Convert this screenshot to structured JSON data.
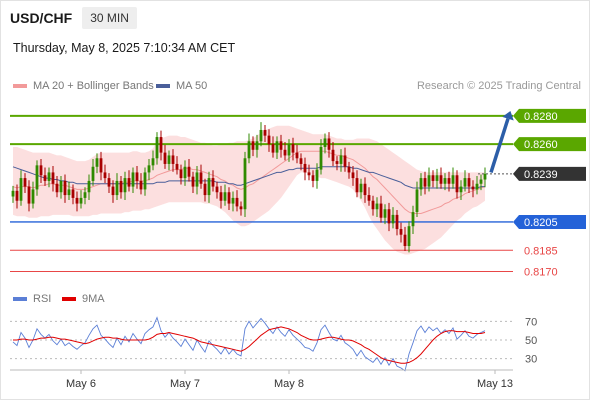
{
  "header": {
    "symbol": "USD/CHF",
    "interval": "30 MIN",
    "datetime": "Thursday, May 8, 2025 7:10:34 AM CET"
  },
  "legend": {
    "ma20": "MA 20 + Bollinger Bands",
    "ma50": "MA 50",
    "rsi": "RSI",
    "rsi_ma": "9MA",
    "credit": "Research © 2025 Trading Central"
  },
  "colors": {
    "resistance": "#5aa700",
    "support": "#2462d8",
    "target": "#e84646",
    "price_badge": "#333333",
    "bollinger_fill": "#fbd9d9",
    "ma20": "#f29a9a",
    "ma50": "#4a5f9a",
    "up_candle": "#2f8a00",
    "down_candle": "#a80000",
    "arrow": "#2c5ea8",
    "rsi": "#5b7fd6",
    "rsi_ma": "#e00000"
  },
  "chart_data": [
    {
      "type": "candlestick",
      "title": "",
      "x_labels": [
        "May 6",
        "May 7",
        "May 8",
        "May 13"
      ],
      "ylim": [
        0.8164,
        0.8294
      ],
      "levels": [
        {
          "value": 0.828,
          "label": "0.8280",
          "kind": "resistance"
        },
        {
          "value": 0.826,
          "label": "0.8260",
          "kind": "resistance"
        },
        {
          "value": 0.8239,
          "label": "0.8239",
          "kind": "last"
        },
        {
          "value": 0.8205,
          "label": "0.8205",
          "kind": "support"
        },
        {
          "value": 0.8185,
          "label": "0.8185",
          "kind": "target"
        },
        {
          "value": 0.817,
          "label": "0.8170",
          "kind": "target"
        }
      ],
      "close": [
        0.8227,
        0.822,
        0.8236,
        0.823,
        0.8218,
        0.8228,
        0.8245,
        0.8238,
        0.8234,
        0.824,
        0.8232,
        0.8226,
        0.8234,
        0.8224,
        0.8228,
        0.8222,
        0.8218,
        0.8222,
        0.8226,
        0.8234,
        0.8244,
        0.825,
        0.824,
        0.8236,
        0.823,
        0.8224,
        0.8234,
        0.8226,
        0.8236,
        0.823,
        0.824,
        0.8234,
        0.8228,
        0.824,
        0.8245,
        0.825,
        0.8265,
        0.8254,
        0.8246,
        0.8252,
        0.8246,
        0.8242,
        0.8236,
        0.8244,
        0.8237,
        0.823,
        0.824,
        0.8232,
        0.8224,
        0.8236,
        0.823,
        0.8226,
        0.822,
        0.8226,
        0.8218,
        0.8222,
        0.8216,
        0.8214,
        0.825,
        0.8262,
        0.8256,
        0.8262,
        0.827,
        0.8266,
        0.826,
        0.8254,
        0.8262,
        0.8256,
        0.8252,
        0.826,
        0.8254,
        0.825,
        0.8246,
        0.824,
        0.8238,
        0.8234,
        0.8242,
        0.8258,
        0.8264,
        0.8256,
        0.8248,
        0.8246,
        0.8252,
        0.8244,
        0.824,
        0.8236,
        0.8226,
        0.8232,
        0.8224,
        0.822,
        0.8214,
        0.8218,
        0.8208,
        0.8214,
        0.8204,
        0.821,
        0.82,
        0.8196,
        0.8188,
        0.8202,
        0.8212,
        0.8228,
        0.8236,
        0.823,
        0.8238,
        0.8234,
        0.8238,
        0.8232,
        0.8236,
        0.8232,
        0.8238,
        0.8226,
        0.823,
        0.8236,
        0.823,
        0.8228,
        0.8232,
        0.8235,
        0.8239
      ],
      "x_label_positions": [
        12,
        38,
        64,
        104
      ],
      "series": [
        {
          "name": "MA 20 + Bollinger Bands",
          "kind": "ma",
          "values": [
            0.823,
            0.8229,
            0.823,
            0.823,
            0.823,
            0.8229,
            0.823,
            0.8231,
            0.8231,
            0.8232,
            0.8232,
            0.8231,
            0.8231,
            0.8231,
            0.823,
            0.8229,
            0.8228,
            0.8228,
            0.8228,
            0.8229,
            0.823,
            0.8231,
            0.8232,
            0.8232,
            0.8232,
            0.8232,
            0.8232,
            0.8232,
            0.8233,
            0.8233,
            0.8234,
            0.8234,
            0.8234,
            0.8234,
            0.8235,
            0.8236,
            0.8238,
            0.8239,
            0.824,
            0.8241,
            0.8242,
            0.8242,
            0.8242,
            0.8243,
            0.8243,
            0.8242,
            0.8242,
            0.8241,
            0.824,
            0.8239,
            0.8238,
            0.8237,
            0.8235,
            0.8234,
            0.8232,
            0.8231,
            0.8229,
            0.8228,
            0.8229,
            0.8231,
            0.8232,
            0.8234,
            0.8236,
            0.8238,
            0.824,
            0.8242,
            0.8244,
            0.8246,
            0.8248,
            0.825,
            0.8252,
            0.8254,
            0.8255,
            0.8255,
            0.8255,
            0.8255,
            0.8255,
            0.8255,
            0.8255,
            0.8254,
            0.8253,
            0.8252,
            0.8252,
            0.8251,
            0.825,
            0.8249,
            0.8247,
            0.8245,
            0.8243,
            0.824,
            0.8237,
            0.8235,
            0.8232,
            0.8229,
            0.8226,
            0.8223,
            0.822,
            0.8217,
            0.8214,
            0.8212,
            0.8211,
            0.8211,
            0.8211,
            0.8212,
            0.8213,
            0.8214,
            0.8215,
            0.8216,
            0.8218,
            0.8219,
            0.8221,
            0.8222,
            0.8223,
            0.8225,
            0.8226,
            0.8227,
            0.8228,
            0.8229,
            0.823
          ]
        },
        {
          "name": "MA 50",
          "kind": "ma",
          "values": [
            0.8244,
            0.8243,
            0.8242,
            0.8241,
            0.824,
            0.8239,
            0.8238,
            0.8237,
            0.8236,
            0.8236,
            0.8235,
            0.8235,
            0.8234,
            0.8234,
            0.8233,
            0.8233,
            0.8232,
            0.8232,
            0.8232,
            0.8232,
            0.8232,
            0.8232,
            0.8232,
            0.8232,
            0.8232,
            0.8232,
            0.8232,
            0.8232,
            0.8232,
            0.8232,
            0.8232,
            0.8232,
            0.8232,
            0.8232,
            0.8232,
            0.8232,
            0.8233,
            0.8233,
            0.8233,
            0.8234,
            0.8234,
            0.8234,
            0.8234,
            0.8234,
            0.8234,
            0.8234,
            0.8234,
            0.8234,
            0.8234,
            0.8234,
            0.8234,
            0.8233,
            0.8233,
            0.8233,
            0.8232,
            0.8232,
            0.8231,
            0.8231,
            0.8232,
            0.8233,
            0.8234,
            0.8235,
            0.8236,
            0.8237,
            0.8238,
            0.8239,
            0.824,
            0.824,
            0.8241,
            0.8242,
            0.8242,
            0.8243,
            0.8243,
            0.8243,
            0.8243,
            0.8243,
            0.8243,
            0.8244,
            0.8244,
            0.8244,
            0.8244,
            0.8244,
            0.8244,
            0.8244,
            0.8244,
            0.8243,
            0.8243,
            0.8242,
            0.8241,
            0.824,
            0.824,
            0.8239,
            0.8238,
            0.8237,
            0.8236,
            0.8235,
            0.8234,
            0.8233,
            0.8231,
            0.823,
            0.8229,
            0.8229,
            0.8229,
            0.8229,
            0.8229,
            0.8229,
            0.8229,
            0.8229,
            0.8229,
            0.8229,
            0.8229,
            0.8229,
            0.8229,
            0.8229,
            0.8229,
            0.8229,
            0.8229,
            0.823,
            0.823
          ]
        },
        {
          "name": "Bollinger upper",
          "kind": "band_upper",
          "values": [
            0.8258,
            0.8258,
            0.8257,
            0.8256,
            0.8255,
            0.8254,
            0.8254,
            0.8254,
            0.8254,
            0.8254,
            0.8253,
            0.8252,
            0.8252,
            0.8251,
            0.825,
            0.8249,
            0.8248,
            0.8248,
            0.8248,
            0.8249,
            0.8251,
            0.8253,
            0.8254,
            0.8254,
            0.8254,
            0.8254,
            0.8254,
            0.8254,
            0.8254,
            0.8254,
            0.8255,
            0.8255,
            0.8254,
            0.8254,
            0.8255,
            0.8257,
            0.8262,
            0.8264,
            0.8265,
            0.8266,
            0.8266,
            0.8266,
            0.8265,
            0.8265,
            0.8264,
            0.8263,
            0.8262,
            0.8261,
            0.8261,
            0.826,
            0.8259,
            0.8259,
            0.826,
            0.826,
            0.8261,
            0.8261,
            0.8262,
            0.8262,
            0.8262,
            0.8263,
            0.8264,
            0.8266,
            0.8268,
            0.827,
            0.8271,
            0.8272,
            0.8273,
            0.8273,
            0.8273,
            0.8273,
            0.8272,
            0.8271,
            0.827,
            0.8269,
            0.8268,
            0.8267,
            0.8267,
            0.8267,
            0.8267,
            0.8266,
            0.8265,
            0.8264,
            0.8264,
            0.8263,
            0.8263,
            0.8263,
            0.8264,
            0.8264,
            0.8264,
            0.8264,
            0.8263,
            0.8262,
            0.826,
            0.8258,
            0.8256,
            0.8254,
            0.8252,
            0.825,
            0.8248,
            0.8246,
            0.8244,
            0.8242,
            0.8241,
            0.824,
            0.824,
            0.824,
            0.824,
            0.824,
            0.824,
            0.824,
            0.824,
            0.824,
            0.824,
            0.824,
            0.824,
            0.824,
            0.824,
            0.824,
            0.824
          ]
        },
        {
          "name": "Bollinger lower",
          "kind": "band_lower",
          "values": [
            0.821,
            0.8209,
            0.8209,
            0.8209,
            0.8208,
            0.8208,
            0.8208,
            0.8209,
            0.8209,
            0.8209,
            0.821,
            0.821,
            0.821,
            0.821,
            0.821,
            0.8209,
            0.8209,
            0.8209,
            0.8209,
            0.8209,
            0.821,
            0.821,
            0.8211,
            0.8211,
            0.8211,
            0.8211,
            0.8211,
            0.8211,
            0.8212,
            0.8212,
            0.8213,
            0.8213,
            0.8213,
            0.8214,
            0.8214,
            0.8215,
            0.8216,
            0.8217,
            0.8218,
            0.8219,
            0.8219,
            0.8219,
            0.8219,
            0.8219,
            0.8219,
            0.8219,
            0.8219,
            0.8219,
            0.8218,
            0.8218,
            0.8217,
            0.8216,
            0.8214,
            0.8212,
            0.8209,
            0.8206,
            0.8204,
            0.8202,
            0.8202,
            0.8203,
            0.8205,
            0.8207,
            0.8209,
            0.8211,
            0.8213,
            0.8216,
            0.8219,
            0.8222,
            0.8226,
            0.823,
            0.8234,
            0.8238,
            0.824,
            0.824,
            0.8239,
            0.8238,
            0.8237,
            0.8236,
            0.8236,
            0.8235,
            0.8234,
            0.8233,
            0.8232,
            0.8231,
            0.823,
            0.8228,
            0.8224,
            0.822,
            0.8215,
            0.8209,
            0.8204,
            0.82,
            0.8196,
            0.8192,
            0.8189,
            0.8186,
            0.8184,
            0.8183,
            0.8182,
            0.8182,
            0.8183,
            0.8184,
            0.8185,
            0.8186,
            0.8188,
            0.819,
            0.8192,
            0.8194,
            0.8197,
            0.82,
            0.8203,
            0.8206,
            0.8208,
            0.8211,
            0.8213,
            0.8215,
            0.8216,
            0.8218,
            0.822
          ]
        }
      ]
    },
    {
      "type": "line",
      "title": "",
      "y_ticks": [
        70,
        50,
        30
      ],
      "ylim": [
        20,
        80
      ],
      "series": [
        {
          "name": "RSI",
          "values": [
            48,
            44,
            58,
            52,
            42,
            50,
            62,
            56,
            52,
            56,
            49,
            45,
            51,
            44,
            47,
            43,
            40,
            44,
            47,
            55,
            62,
            66,
            55,
            51,
            46,
            42,
            52,
            45,
            54,
            48,
            57,
            51,
            46,
            57,
            61,
            64,
            74,
            60,
            53,
            58,
            52,
            48,
            43,
            51,
            45,
            39,
            50,
            43,
            37,
            49,
            44,
            40,
            35,
            42,
            35,
            40,
            35,
            33,
            62,
            70,
            63,
            68,
            73,
            68,
            62,
            57,
            64,
            58,
            54,
            61,
            55,
            51,
            47,
            42,
            41,
            38,
            47,
            61,
            66,
            58,
            51,
            49,
            55,
            47,
            44,
            40,
            33,
            39,
            32,
            29,
            26,
            31,
            24,
            31,
            23,
            30,
            22,
            20,
            17,
            35,
            47,
            60,
            65,
            58,
            64,
            60,
            63,
            57,
            61,
            57,
            63,
            51,
            55,
            60,
            54,
            52,
            56,
            58,
            60
          ]
        },
        {
          "name": "9MA",
          "values": [
            50,
            50,
            51,
            51,
            50,
            50,
            51,
            52,
            52,
            53,
            53,
            52,
            51,
            51,
            50,
            49,
            48,
            47,
            46,
            47,
            49,
            51,
            52,
            53,
            53,
            52,
            52,
            51,
            50,
            50,
            50,
            50,
            50,
            50,
            51,
            53,
            56,
            57,
            57,
            58,
            57,
            56,
            55,
            54,
            53,
            52,
            50,
            48,
            47,
            46,
            45,
            44,
            43,
            42,
            41,
            40,
            39,
            38,
            40,
            43,
            47,
            51,
            55,
            58,
            61,
            62,
            63,
            64,
            63,
            62,
            60,
            58,
            55,
            53,
            51,
            50,
            50,
            51,
            52,
            53,
            53,
            52,
            51,
            50,
            50,
            49,
            47,
            45,
            42,
            40,
            37,
            34,
            31,
            29,
            28,
            27,
            26,
            25,
            25,
            26,
            28,
            31,
            35,
            40,
            45,
            50,
            54,
            57,
            59,
            60,
            60,
            59,
            59,
            59,
            58,
            57,
            57,
            57,
            58
          ]
        }
      ]
    }
  ]
}
